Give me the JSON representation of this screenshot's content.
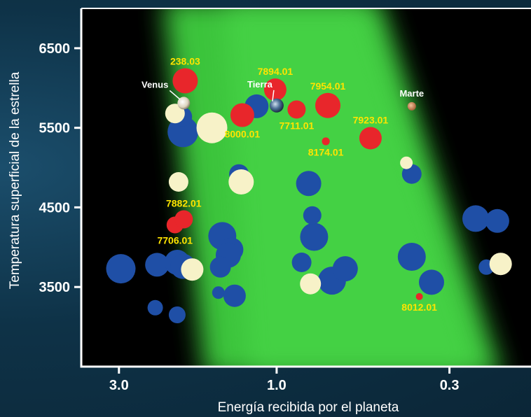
{
  "chart_data": {
    "type": "scatter",
    "xlabel": "Energía recibida por el planeta",
    "ylabel": "Temperatura superficial de la estrella",
    "x_scale": "log-reversed",
    "xlim": [
      3.9,
      0.17
    ],
    "ylim": [
      2500,
      7000
    ],
    "xticks": [
      {
        "value": 3.0,
        "label": "3.0"
      },
      {
        "value": 1.0,
        "label": "1.0"
      },
      {
        "value": 0.3,
        "label": "0.3"
      }
    ],
    "yticks": [
      {
        "value": 6500,
        "label": "6500"
      },
      {
        "value": 5500,
        "label": "5500"
      },
      {
        "value": 4500,
        "label": "4500"
      },
      {
        "value": 3500,
        "label": "3500"
      }
    ],
    "colors": {
      "plot_bg": "#000000",
      "zone": "#3fcf3f",
      "blue": "#1f4fa6",
      "cream": "#f7f2c8",
      "red": "#e8262b",
      "label_yellow": "#ffe400"
    },
    "series": [
      {
        "name": "",
        "color": "#1f4fa6",
        "points": [
          [
            2.96,
            3730,
            1.05
          ],
          [
            2.3,
            3780,
            0.85
          ],
          [
            2.0,
            3810,
            0.9
          ],
          [
            1.92,
            3760,
            0.9
          ],
          [
            2.33,
            3240,
            0.55
          ],
          [
            2.0,
            3150,
            0.6
          ],
          [
            1.92,
            5450,
            1.1
          ],
          [
            1.93,
            5640,
            0.7
          ],
          [
            1.46,
            4140,
            1.0
          ],
          [
            1.37,
            3970,
            0.85
          ],
          [
            1.4,
            3900,
            0.9
          ],
          [
            1.48,
            3750,
            0.75
          ],
          [
            1.5,
            3430,
            0.45
          ],
          [
            1.34,
            3390,
            0.8
          ],
          [
            1.3,
            4920,
            0.7
          ],
          [
            1.15,
            5770,
            0.85
          ],
          [
            0.8,
            4800,
            0.9
          ],
          [
            0.77,
            4130,
            1.0
          ],
          [
            0.78,
            4400,
            0.65
          ],
          [
            0.84,
            3810,
            0.7
          ],
          [
            0.68,
            3580,
            1.0
          ],
          [
            0.62,
            3730,
            0.9
          ],
          [
            0.39,
            4920,
            0.7
          ],
          [
            0.39,
            3880,
            1.0
          ],
          [
            0.34,
            3560,
            0.9
          ],
          [
            0.25,
            4360,
            0.95
          ],
          [
            0.215,
            4330,
            0.85
          ],
          [
            0.232,
            3750,
            0.55
          ]
        ]
      },
      {
        "name": "",
        "color": "#f7f2c8",
        "points": [
          [
            2.03,
            5680,
            0.7
          ],
          [
            1.98,
            4820,
            0.7
          ],
          [
            1.8,
            3720,
            0.8
          ],
          [
            1.57,
            5500,
            1.1
          ],
          [
            1.28,
            4820,
            0.9
          ],
          [
            0.79,
            3540,
            0.75
          ],
          [
            0.405,
            5060,
            0.45
          ],
          [
            0.21,
            3790,
            0.8
          ]
        ]
      },
      {
        "name": "",
        "color": "#e8262b",
        "points": [
          [
            1.89,
            6090,
            0.9
          ],
          [
            1.01,
            5980,
            0.8
          ],
          [
            0.87,
            5730,
            0.65
          ],
          [
            1.27,
            5660,
            0.85
          ],
          [
            0.7,
            5780,
            0.9
          ],
          [
            0.71,
            5330,
            0.28
          ],
          [
            0.52,
            5370,
            0.8
          ],
          [
            2.03,
            4280,
            0.6
          ],
          [
            1.91,
            4350,
            0.65
          ],
          [
            0.37,
            3380,
            0.25
          ]
        ]
      },
      {
        "name": "",
        "color": "#d79a6a",
        "points": [
          [
            0.39,
            5770,
            0.3
          ]
        ]
      }
    ],
    "planets": [
      {
        "name": "Venus",
        "x": 1.91,
        "y": 5810,
        "color": "#ece3cf",
        "r": 0.45
      },
      {
        "name": "Tierra",
        "x": 1.0,
        "y": 5780,
        "color": "#5f7fa0",
        "r": 0.5
      },
      {
        "name": "Marte",
        "x": 0.39,
        "y": 5770,
        "color": "#d79a6a",
        "r": 0.3
      }
    ],
    "annotations": [
      {
        "text": "238.03",
        "x": 1.89,
        "y": 6090,
        "pos": "above"
      },
      {
        "text": "7894.01",
        "x": 1.01,
        "y": 5980,
        "pos": "above"
      },
      {
        "text": "7954.01",
        "x": 0.7,
        "y": 5780,
        "pos": "above"
      },
      {
        "text": "7711.01",
        "x": 0.87,
        "y": 5730,
        "pos": "below"
      },
      {
        "text": "8000.01",
        "x": 1.27,
        "y": 5660,
        "pos": "below"
      },
      {
        "text": "8174.01",
        "x": 0.71,
        "y": 5330,
        "pos": "below"
      },
      {
        "text": "7923.01",
        "x": 0.52,
        "y": 5370,
        "pos": "above"
      },
      {
        "text": "7882.01",
        "x": 1.91,
        "y": 4350,
        "pos": "above"
      },
      {
        "text": "7706.01",
        "x": 2.03,
        "y": 4280,
        "pos": "below"
      },
      {
        "text": "8012.01",
        "x": 0.37,
        "y": 3380,
        "pos": "below"
      }
    ]
  }
}
